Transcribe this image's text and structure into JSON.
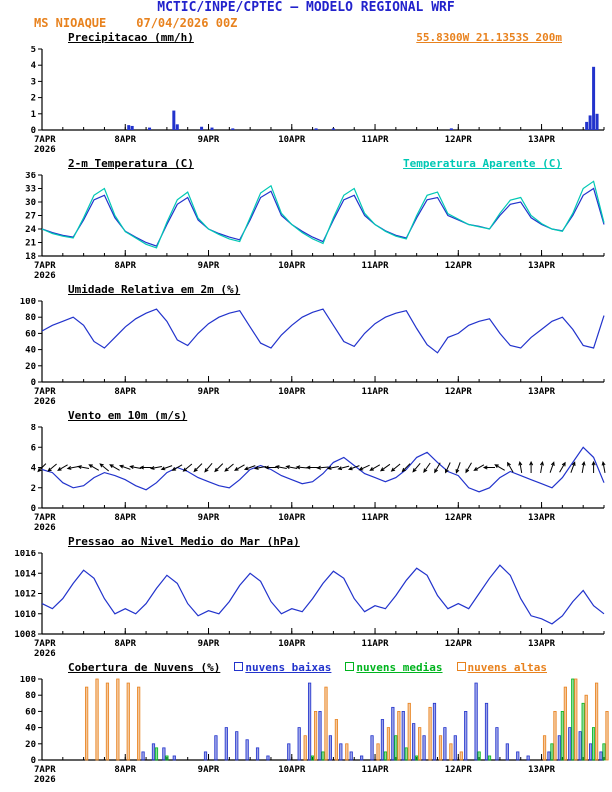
{
  "header": {
    "title": "MCTIC/INPE/CPTEC — MODELO REGIONAL WRF",
    "station": "MS NIOAQUE",
    "run": "07/04/2026 00Z",
    "location": "55.8300W 21.1353S 200m"
  },
  "colors": {
    "title_blue": "#2222cc",
    "orange": "#e8821e",
    "line_blue": "#2233cc",
    "cyan": "#00c8b4",
    "green": "#00b41e",
    "axis_black": "#000000"
  },
  "x_axis": {
    "xlim": [
      0,
      162
    ],
    "tick_hours": [
      0,
      24,
      48,
      72,
      96,
      120,
      144
    ],
    "tick_labels": [
      "7APR",
      "8APR",
      "9APR",
      "10APR",
      "11APR",
      "12APR",
      "13APR"
    ],
    "year_label": "2026"
  },
  "sample_hours": [
    0,
    3,
    6,
    9,
    12,
    15,
    18,
    21,
    24,
    27,
    30,
    33,
    36,
    39,
    42,
    45,
    48,
    51,
    54,
    57,
    60,
    63,
    66,
    69,
    72,
    75,
    78,
    81,
    84,
    87,
    90,
    93,
    96,
    99,
    102,
    105,
    108,
    111,
    114,
    117,
    120,
    123,
    126,
    129,
    132,
    135,
    138,
    141,
    144,
    147,
    150,
    153,
    156,
    159,
    162
  ],
  "chart_data": [
    {
      "type": "bar",
      "title": "Precipitacao (mm/h)",
      "ylim": [
        0,
        5
      ],
      "yticks": [
        0,
        1,
        2,
        3,
        4,
        5
      ],
      "color": "#2233cc",
      "bars": [
        {
          "h": 25,
          "v": 0.3
        },
        {
          "h": 26,
          "v": 0.25
        },
        {
          "h": 31,
          "v": 0.15
        },
        {
          "h": 38,
          "v": 1.2
        },
        {
          "h": 39,
          "v": 0.35
        },
        {
          "h": 46,
          "v": 0.2
        },
        {
          "h": 49,
          "v": 0.15
        },
        {
          "h": 55,
          "v": 0.1
        },
        {
          "h": 79,
          "v": 0.1
        },
        {
          "h": 84,
          "v": 0.1
        },
        {
          "h": 118,
          "v": 0.1
        },
        {
          "h": 157,
          "v": 0.5
        },
        {
          "h": 158,
          "v": 0.9
        },
        {
          "h": 159,
          "v": 3.9
        },
        {
          "h": 160,
          "v": 1.0
        }
      ]
    },
    {
      "type": "line",
      "title": "2-m Temperatura (C)",
      "ylim": [
        18,
        36
      ],
      "yticks": [
        18,
        21,
        24,
        27,
        30,
        33,
        36
      ],
      "series": [
        {
          "name": "2-m Temperatura (C)",
          "color": "#2233cc",
          "values": [
            24.0,
            23.2,
            22.6,
            22.2,
            26.0,
            30.5,
            31.5,
            26.5,
            23.5,
            22.2,
            21.0,
            20.2,
            25.0,
            29.5,
            31.0,
            26.0,
            24.0,
            23.0,
            22.2,
            21.6,
            26.0,
            31.0,
            32.4,
            27.0,
            25.0,
            23.5,
            22.2,
            21.2,
            26.0,
            30.5,
            31.5,
            27.0,
            25.0,
            23.6,
            22.6,
            22.0,
            26.5,
            30.5,
            31.0,
            27.0,
            26.0,
            25.0,
            24.6,
            24.0,
            27.0,
            29.5,
            30.0,
            26.5,
            25.0,
            24.0,
            23.6,
            27.0,
            31.5,
            33.0,
            25.0
          ]
        },
        {
          "name": "Temperatura Aparente (C)",
          "color": "#00c8b4",
          "values": [
            24.0,
            23.0,
            22.4,
            22.0,
            26.5,
            31.5,
            33.0,
            27.0,
            23.4,
            22.0,
            20.6,
            19.8,
            25.5,
            30.5,
            32.2,
            26.4,
            24.0,
            22.8,
            21.8,
            21.2,
            26.5,
            32.0,
            33.6,
            27.5,
            25.0,
            23.2,
            21.8,
            20.8,
            26.5,
            31.5,
            33.0,
            27.5,
            25.0,
            23.5,
            22.4,
            21.8,
            27.0,
            31.5,
            32.2,
            27.4,
            26.2,
            25.0,
            24.5,
            24.0,
            27.5,
            30.4,
            31.0,
            27.0,
            25.2,
            24.0,
            23.5,
            27.5,
            33.0,
            34.6,
            25.4
          ]
        }
      ]
    },
    {
      "type": "line",
      "title": "Umidade Relativa em 2m (%)",
      "ylim": [
        0,
        100
      ],
      "yticks": [
        0,
        20,
        40,
        60,
        80,
        100
      ],
      "series": [
        {
          "name": "Umidade Relativa",
          "color": "#2233cc",
          "values": [
            63,
            70,
            75,
            80,
            70,
            50,
            42,
            55,
            68,
            78,
            85,
            90,
            75,
            52,
            45,
            60,
            72,
            80,
            85,
            88,
            68,
            48,
            42,
            58,
            70,
            80,
            86,
            90,
            70,
            50,
            44,
            60,
            72,
            80,
            85,
            88,
            66,
            46,
            36,
            55,
            60,
            70,
            75,
            78,
            60,
            45,
            42,
            55,
            65,
            75,
            80,
            65,
            45,
            42,
            82
          ]
        }
      ]
    },
    {
      "type": "wind",
      "title": "Vento em 10m (m/s)",
      "ylim": [
        0,
        8
      ],
      "yticks": [
        0,
        2,
        4,
        6,
        8
      ],
      "barb_level": 4,
      "barb_dirs": [
        45,
        50,
        60,
        80,
        100,
        120,
        130,
        120,
        110,
        100,
        90,
        80,
        70,
        60,
        50,
        45,
        40,
        45,
        50,
        60,
        70,
        80,
        90,
        100,
        100,
        95,
        90,
        85,
        80,
        75,
        70,
        65,
        60,
        55,
        50,
        45,
        40,
        35,
        30,
        25,
        20,
        30,
        60,
        90,
        120,
        150,
        170,
        180,
        190,
        200,
        210,
        200,
        190,
        180,
        170
      ],
      "series": [
        {
          "name": "Vento 10m",
          "color": "#2233cc",
          "values": [
            3.8,
            3.5,
            2.5,
            2.0,
            2.2,
            3.0,
            3.5,
            3.2,
            2.8,
            2.2,
            1.8,
            2.5,
            3.5,
            4.0,
            3.6,
            3.0,
            2.6,
            2.2,
            2.0,
            2.8,
            3.8,
            4.2,
            3.8,
            3.2,
            2.8,
            2.4,
            2.6,
            3.4,
            4.5,
            5.0,
            4.2,
            3.4,
            3.0,
            2.6,
            3.0,
            3.8,
            5.0,
            5.5,
            4.5,
            3.6,
            3.2,
            2.0,
            1.6,
            2.0,
            3.0,
            3.6,
            3.2,
            2.8,
            2.4,
            2.0,
            3.0,
            4.5,
            6.0,
            5.0,
            2.5
          ]
        }
      ]
    },
    {
      "type": "line",
      "title": "Pressao ao Nivel Medio do Mar (hPa)",
      "ylim": [
        1008,
        1016
      ],
      "yticks": [
        1008,
        1010,
        1012,
        1014,
        1016
      ],
      "series": [
        {
          "name": "Pressao",
          "color": "#2233cc",
          "values": [
            1011.0,
            1010.5,
            1011.5,
            1013.0,
            1014.3,
            1013.5,
            1011.5,
            1010.0,
            1010.5,
            1010.0,
            1011.0,
            1012.5,
            1013.8,
            1013.0,
            1011.0,
            1009.8,
            1010.3,
            1010.0,
            1011.2,
            1012.8,
            1014.0,
            1013.2,
            1011.2,
            1010.0,
            1010.5,
            1010.2,
            1011.5,
            1013.0,
            1014.2,
            1013.5,
            1011.5,
            1010.2,
            1010.8,
            1010.5,
            1011.8,
            1013.3,
            1014.5,
            1013.8,
            1011.8,
            1010.5,
            1011.0,
            1010.5,
            1012.0,
            1013.5,
            1014.8,
            1013.8,
            1011.5,
            1009.8,
            1009.5,
            1009.0,
            1009.8,
            1011.2,
            1012.3,
            1010.8,
            1010.0
          ]
        }
      ]
    },
    {
      "type": "grouped-bar",
      "title": "Cobertura de Nuvens (%)",
      "ylim": [
        0,
        100
      ],
      "yticks": [
        0,
        20,
        40,
        60,
        80,
        100
      ],
      "series": [
        {
          "name": "nuvens baixas",
          "color": "#2233cc",
          "values": [
            0,
            0,
            0,
            0,
            0,
            0,
            0,
            0,
            0,
            0,
            10,
            20,
            15,
            5,
            0,
            0,
            10,
            30,
            40,
            35,
            25,
            15,
            5,
            0,
            20,
            40,
            95,
            60,
            30,
            20,
            10,
            5,
            30,
            50,
            65,
            60,
            45,
            30,
            70,
            40,
            30,
            60,
            95,
            70,
            40,
            20,
            10,
            5,
            0,
            10,
            30,
            40,
            35,
            20,
            10
          ]
        },
        {
          "name": "nuvens medias",
          "color": "#00b41e",
          "values": [
            0,
            0,
            0,
            0,
            0,
            0,
            0,
            0,
            0,
            0,
            0,
            15,
            5,
            0,
            0,
            0,
            0,
            0,
            0,
            0,
            0,
            0,
            0,
            0,
            0,
            0,
            5,
            10,
            0,
            0,
            0,
            0,
            0,
            10,
            30,
            15,
            5,
            0,
            0,
            0,
            0,
            0,
            10,
            5,
            0,
            0,
            0,
            0,
            0,
            20,
            60,
            100,
            70,
            40,
            20
          ]
        },
        {
          "name": "nuvens altas",
          "color": "#e8821e",
          "values": [
            0,
            0,
            0,
            0,
            90,
            100,
            95,
            100,
            95,
            90,
            0,
            0,
            0,
            0,
            0,
            0,
            0,
            0,
            0,
            0,
            0,
            0,
            0,
            0,
            0,
            30,
            60,
            90,
            50,
            20,
            0,
            0,
            20,
            40,
            60,
            70,
            40,
            65,
            30,
            20,
            10,
            0,
            0,
            0,
            0,
            0,
            0,
            0,
            30,
            60,
            90,
            100,
            80,
            95,
            60
          ]
        }
      ]
    }
  ]
}
